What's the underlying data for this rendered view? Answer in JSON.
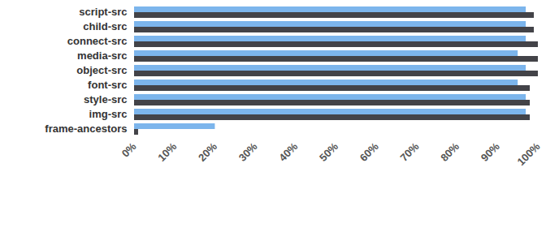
{
  "chart_data": {
    "type": "bar",
    "orientation": "horizontal",
    "grid": false,
    "categories": [
      "script-src",
      "child-src",
      "connect-src",
      "media-src",
      "object-src",
      "font-src",
      "style-src",
      "img-src",
      "frame-ancestors"
    ],
    "series": [
      {
        "color": "#7cb5ec",
        "values": [
          97,
          97,
          97,
          95,
          97,
          95,
          97,
          97,
          20
        ]
      },
      {
        "color": "#434348",
        "values": [
          99,
          99,
          100,
          100,
          100,
          98,
          98,
          98,
          1
        ]
      }
    ],
    "xlim": [
      0,
      100
    ],
    "xticks": [
      {
        "value": 0,
        "label": "0%"
      },
      {
        "value": 10,
        "label": "10%"
      },
      {
        "value": 20,
        "label": "20%"
      },
      {
        "value": 30,
        "label": "30%"
      },
      {
        "value": 40,
        "label": "40%"
      },
      {
        "value": 50,
        "label": "50%"
      },
      {
        "value": 60,
        "label": "60%"
      },
      {
        "value": 70,
        "label": "70%"
      },
      {
        "value": 80,
        "label": "80%"
      },
      {
        "value": 90,
        "label": "90%"
      },
      {
        "value": 100,
        "label": "100%"
      }
    ]
  }
}
